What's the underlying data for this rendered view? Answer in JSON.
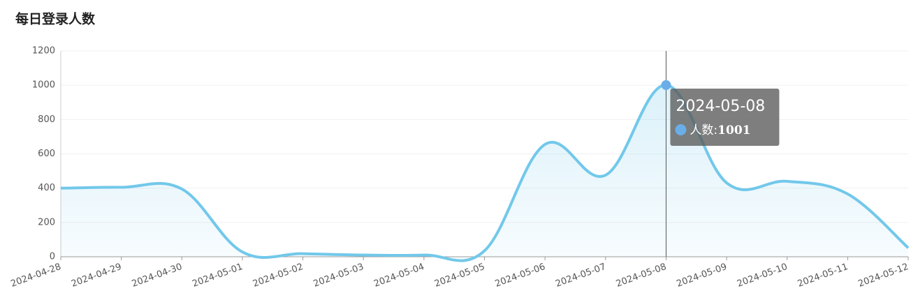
{
  "chart_data": {
    "type": "line",
    "title": "每日登录人数",
    "categories": [
      "2024-04-28",
      "2024-04-29",
      "2024-04-30",
      "2024-05-01",
      "2024-05-02",
      "2024-05-03",
      "2024-05-04",
      "2024-05-05",
      "2024-05-06",
      "2024-05-07",
      "2024-05-08",
      "2024-05-09",
      "2024-05-10",
      "2024-05-11",
      "2024-05-12"
    ],
    "series": [
      {
        "name": "人数",
        "color": "#72c8ea",
        "values": [
          400,
          405,
          395,
          28,
          18,
          10,
          10,
          35,
          655,
          476,
          1001,
          431,
          440,
          366,
          52
        ]
      }
    ],
    "ylim": [
      0,
      1200
    ],
    "yticks": [
      0,
      200,
      400,
      600,
      800,
      1000,
      1200
    ],
    "grid": true,
    "tooltip": {
      "title": "2024-05-08",
      "label": "人数:",
      "value": 1001
    }
  }
}
